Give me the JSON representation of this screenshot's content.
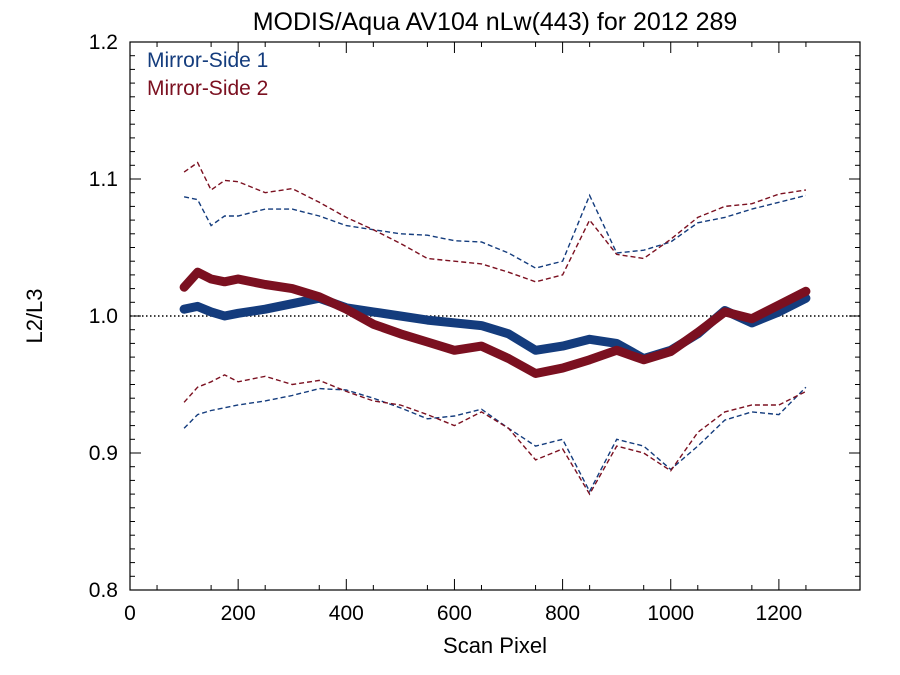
{
  "chart_data": {
    "type": "line",
    "title": "MODIS/Aqua AV104 nLw(443) for 2012 289",
    "xlabel": "Scan Pixel",
    "ylabel": "L2/L3",
    "xlim": [
      0,
      1350
    ],
    "ylim": [
      0.8,
      1.2
    ],
    "x_ticks": [
      0,
      200,
      400,
      600,
      800,
      1000,
      1200
    ],
    "y_ticks": [
      0.8,
      0.9,
      1.0,
      1.1,
      1.2
    ],
    "x_tick_labels": [
      "0",
      "200",
      "400",
      "600",
      "800",
      "1000",
      "1200"
    ],
    "y_tick_labels": [
      "0.8",
      "0.9",
      "1.0",
      "1.1",
      "1.2"
    ],
    "reference_line": {
      "y": 1.0,
      "style": "dotted"
    },
    "legend_position": "top-left",
    "grid": false,
    "series": [
      {
        "name": "Mirror-Side 1",
        "color": "#143c7d",
        "x": [
          100,
          125,
          150,
          175,
          200,
          250,
          300,
          350,
          400,
          450,
          500,
          550,
          600,
          650,
          700,
          750,
          800,
          850,
          900,
          950,
          1000,
          1050,
          1100,
          1150,
          1200,
          1250
        ],
        "mean": [
          1.005,
          1.007,
          1.003,
          1.0,
          1.002,
          1.005,
          1.009,
          1.013,
          1.006,
          1.003,
          1.0,
          0.997,
          0.995,
          0.993,
          0.987,
          0.975,
          0.978,
          0.983,
          0.98,
          0.969,
          0.975,
          0.987,
          1.004,
          0.995,
          1.003,
          1.013
        ],
        "upper": [
          1.087,
          1.085,
          1.066,
          1.073,
          1.073,
          1.078,
          1.078,
          1.073,
          1.066,
          1.063,
          1.06,
          1.059,
          1.055,
          1.054,
          1.046,
          1.035,
          1.04,
          1.088,
          1.046,
          1.048,
          1.054,
          1.068,
          1.072,
          1.078,
          1.083,
          1.088
        ],
        "lower": [
          0.918,
          0.928,
          0.931,
          0.933,
          0.935,
          0.938,
          0.942,
          0.947,
          0.946,
          0.94,
          0.933,
          0.925,
          0.927,
          0.932,
          0.918,
          0.905,
          0.91,
          0.872,
          0.91,
          0.905,
          0.888,
          0.905,
          0.924,
          0.93,
          0.928,
          0.948
        ]
      },
      {
        "name": "Mirror-Side 2",
        "color": "#7b1020",
        "x": [
          100,
          125,
          150,
          175,
          200,
          250,
          300,
          350,
          400,
          450,
          500,
          550,
          600,
          650,
          700,
          750,
          800,
          850,
          900,
          950,
          1000,
          1050,
          1100,
          1150,
          1200,
          1250
        ],
        "mean": [
          1.021,
          1.032,
          1.027,
          1.025,
          1.027,
          1.023,
          1.02,
          1.014,
          1.005,
          0.994,
          0.987,
          0.981,
          0.975,
          0.978,
          0.969,
          0.958,
          0.962,
          0.968,
          0.975,
          0.968,
          0.974,
          0.988,
          1.003,
          0.998,
          1.008,
          1.018
        ],
        "upper": [
          1.105,
          1.112,
          1.092,
          1.099,
          1.098,
          1.09,
          1.093,
          1.083,
          1.072,
          1.063,
          1.053,
          1.042,
          1.04,
          1.038,
          1.032,
          1.025,
          1.03,
          1.07,
          1.045,
          1.042,
          1.056,
          1.072,
          1.08,
          1.082,
          1.089,
          1.092
        ],
        "lower": [
          0.937,
          0.948,
          0.952,
          0.957,
          0.952,
          0.956,
          0.95,
          0.953,
          0.945,
          0.938,
          0.935,
          0.928,
          0.92,
          0.93,
          0.918,
          0.895,
          0.903,
          0.87,
          0.905,
          0.9,
          0.887,
          0.915,
          0.93,
          0.935,
          0.935,
          0.945
        ]
      }
    ]
  }
}
